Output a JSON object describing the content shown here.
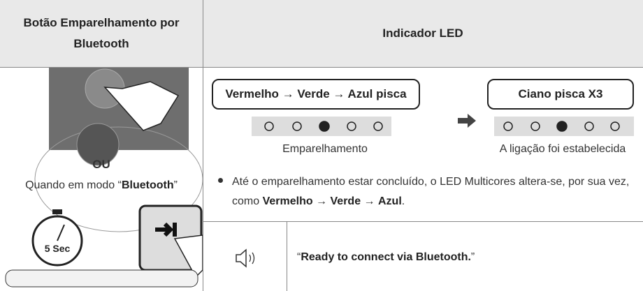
{
  "header": {
    "left": "Botão Emparelhamento por Bluetooth",
    "right": "Indicador LED"
  },
  "left": {
    "or": "OU",
    "mode_text": [
      "Quando em modo “",
      "Bluetooth",
      "”"
    ],
    "timer_label": "5 Sec"
  },
  "led": {
    "states": [
      {
        "callout": "Vermelho → Verde → Azul pisca",
        "caption": "Emparelhamento"
      },
      {
        "callout": "Ciano pisca X3",
        "caption": "A ligação foi estabelecida"
      }
    ]
  },
  "note": [
    "Até o emparelhamento estar concluído, o LED Multicores altera-se, por sua vez, como ",
    "Vermelho",
    " → ",
    "Verde",
    " → ",
    "Azul",
    "."
  ],
  "voice": [
    "“",
    "Ready to connect via Bluetooth.",
    "”"
  ]
}
